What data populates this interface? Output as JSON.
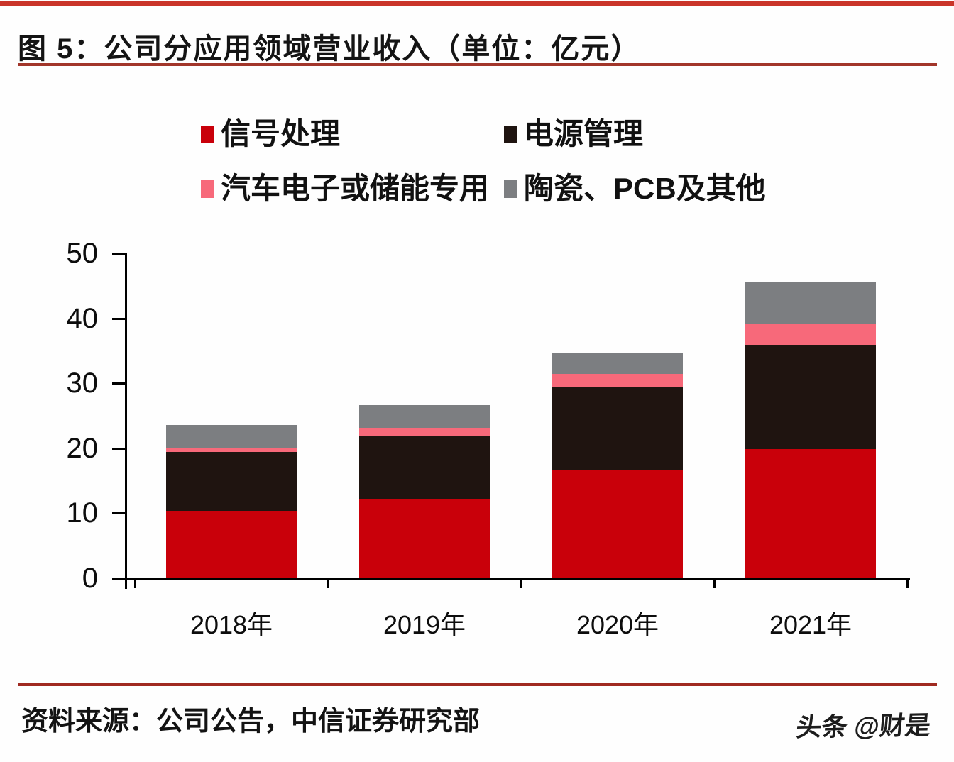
{
  "figure": {
    "title": "图 5：公司分应用领域营业收入（单位：亿元）",
    "source": "资料来源：公司公告，中信证券研究部",
    "watermark": "头条 @财是"
  },
  "colors": {
    "top_rule": "#ca352a",
    "title_rule": "#a2362a",
    "footer_rule": "#a02a21",
    "axis": "#000000"
  },
  "chart_data": {
    "type": "bar",
    "stacked": true,
    "title": "图 5：公司分应用领域营业收入（单位：亿元）",
    "unit": "亿元",
    "categories": [
      "2018年",
      "2019年",
      "2020年",
      "2021年"
    ],
    "series": [
      {
        "name": "信号处理",
        "color": "#c9000a",
        "values": [
          10.4,
          12.2,
          16.6,
          19.9
        ]
      },
      {
        "name": "电源管理",
        "color": "#1f1410",
        "values": [
          9.0,
          9.7,
          12.9,
          16.0
        ]
      },
      {
        "name": "汽车电子或储能专用",
        "color": "#f7697a",
        "values": [
          0.6,
          1.2,
          1.9,
          3.2
        ]
      },
      {
        "name": "陶瓷、PCB及其他",
        "color": "#7c7e81",
        "values": [
          3.6,
          3.5,
          3.2,
          6.4
        ]
      }
    ],
    "totals": [
      23.6,
      26.6,
      34.6,
      45.5
    ],
    "xlabel": "",
    "ylabel": "",
    "ylim": [
      0,
      50
    ],
    "y_ticks": [
      0,
      10,
      20,
      30,
      40,
      50
    ],
    "grid": false,
    "legend_position": "top"
  }
}
